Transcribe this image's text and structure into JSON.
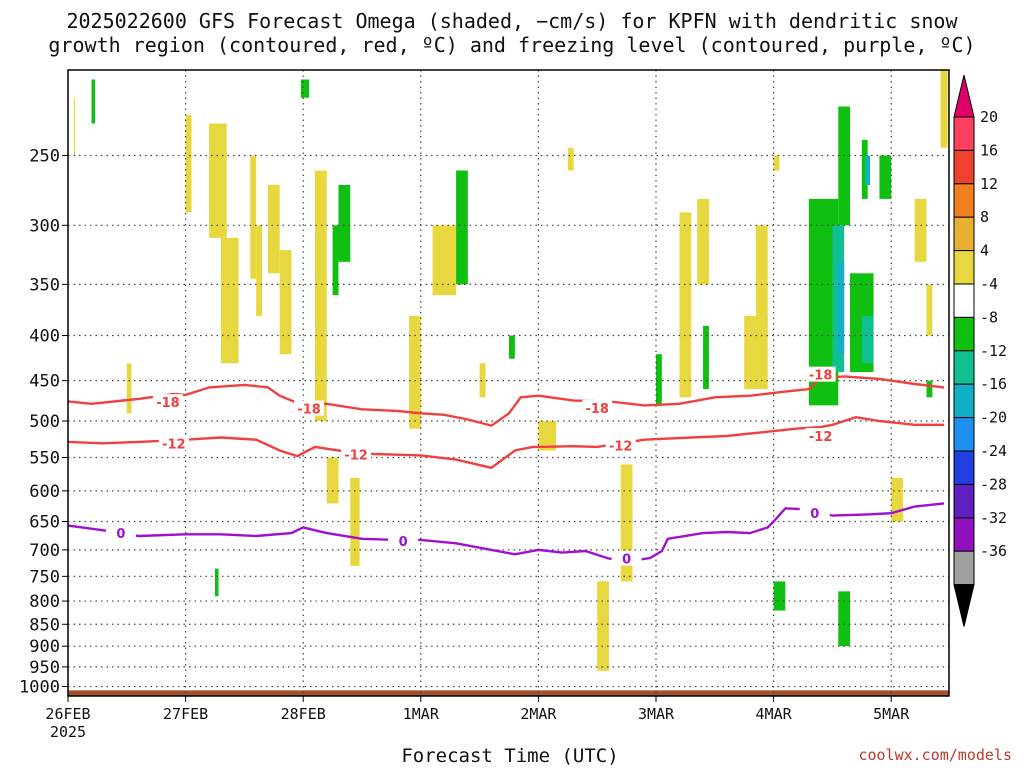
{
  "chart_data": {
    "type": "heatmap",
    "title_line1": "2025022600 GFS Forecast Omega (shaded, −cm/s) for KPFN with dendritic snow",
    "title_line2": "growth region (contoured, red, ºC) and freezing level (contoured, purple, ºC)",
    "xlabel": "Forecast Time (UTC)",
    "credit": "coolwx.com/models",
    "x_ticks": [
      "26FEB",
      "27FEB",
      "28FEB",
      "1MAR",
      "2MAR",
      "3MAR",
      "4MAR",
      "5MAR"
    ],
    "x_year": "2025",
    "x_range_days": [
      0,
      7.45
    ],
    "y_scale": "log-pressure",
    "y_ticks": [
      250,
      300,
      350,
      400,
      450,
      500,
      550,
      600,
      650,
      700,
      750,
      800,
      850,
      900,
      950,
      1000
    ],
    "y_range_hpa": [
      200,
      1025
    ],
    "grid": true,
    "colorbar": {
      "labels": [
        "20",
        "16",
        "12",
        "8",
        "4",
        "-4",
        "-8",
        "-12",
        "-16",
        "-20",
        "-24",
        "-28",
        "-32",
        "-36"
      ],
      "colors": [
        "#ff4060",
        "#f04030",
        "#f08020",
        "#e8b030",
        "#e8d840",
        "#ffffff",
        "#10c010",
        "#10c090",
        "#10b0c8",
        "#2090f0",
        "#2040e0",
        "#6020c0",
        "#9010c0",
        "#a0a0a0"
      ],
      "top_arrow_color": "#e0006a",
      "bottom_arrow_color": "#000000"
    },
    "contours": [
      {
        "label": "-18",
        "color": "#f04040",
        "points": [
          [
            0,
            475
          ],
          [
            0.2,
            478
          ],
          [
            0.6,
            472
          ],
          [
            0.9,
            466
          ],
          [
            1.0,
            467
          ],
          [
            1.2,
            458
          ],
          [
            1.5,
            455
          ],
          [
            1.7,
            458
          ],
          [
            1.8,
            468
          ],
          [
            2.0,
            480
          ],
          [
            2.2,
            478
          ],
          [
            2.5,
            485
          ],
          [
            2.8,
            487
          ],
          [
            3.0,
            490
          ],
          [
            3.2,
            492
          ],
          [
            3.4,
            498
          ],
          [
            3.6,
            506
          ],
          [
            3.75,
            490
          ],
          [
            3.85,
            470
          ],
          [
            4.0,
            468
          ],
          [
            4.3,
            474
          ],
          [
            4.6,
            475
          ],
          [
            4.9,
            480
          ],
          [
            5.2,
            478
          ],
          [
            5.5,
            470
          ],
          [
            5.8,
            468
          ],
          [
            6.1,
            463
          ],
          [
            6.3,
            460
          ],
          [
            6.4,
            447
          ],
          [
            6.6,
            445
          ],
          [
            6.9,
            448
          ],
          [
            7.2,
            454
          ],
          [
            7.45,
            458
          ]
        ],
        "label_at": [
          [
            0.85,
            476
          ],
          [
            2.05,
            484
          ],
          [
            4.5,
            483
          ],
          [
            6.4,
            443
          ]
        ]
      },
      {
        "label": "-12",
        "color": "#f04040",
        "points": [
          [
            0,
            528
          ],
          [
            0.3,
            530
          ],
          [
            0.6,
            528
          ],
          [
            1.0,
            525
          ],
          [
            1.3,
            522
          ],
          [
            1.6,
            525
          ],
          [
            1.8,
            540
          ],
          [
            1.95,
            548
          ],
          [
            2.1,
            535
          ],
          [
            2.3,
            540
          ],
          [
            2.6,
            545
          ],
          [
            3.0,
            547
          ],
          [
            3.3,
            553
          ],
          [
            3.6,
            565
          ],
          [
            3.8,
            540
          ],
          [
            3.95,
            535
          ],
          [
            4.0,
            535
          ],
          [
            4.3,
            534
          ],
          [
            4.5,
            535
          ],
          [
            4.7,
            530
          ],
          [
            4.9,
            525
          ],
          [
            5.3,
            522
          ],
          [
            5.6,
            520
          ],
          [
            5.9,
            515
          ],
          [
            6.2,
            510
          ],
          [
            6.4,
            508
          ],
          [
            6.5,
            505
          ],
          [
            6.7,
            495
          ],
          [
            6.9,
            500
          ],
          [
            7.2,
            505
          ],
          [
            7.45,
            505
          ]
        ],
        "label_at": [
          [
            0.9,
            530
          ],
          [
            2.45,
            546
          ],
          [
            4.7,
            533
          ],
          [
            6.4,
            520
          ]
        ]
      },
      {
        "label": "0",
        "color": "#a010d0",
        "points": [
          [
            0,
            657
          ],
          [
            0.3,
            665
          ],
          [
            0.6,
            675
          ],
          [
            1.0,
            672
          ],
          [
            1.3,
            672
          ],
          [
            1.6,
            675
          ],
          [
            1.9,
            670
          ],
          [
            2.0,
            660
          ],
          [
            2.2,
            670
          ],
          [
            2.5,
            680
          ],
          [
            2.8,
            682
          ],
          [
            3.0,
            682
          ],
          [
            3.3,
            688
          ],
          [
            3.6,
            700
          ],
          [
            3.8,
            708
          ],
          [
            4.0,
            700
          ],
          [
            4.2,
            705
          ],
          [
            4.4,
            702
          ],
          [
            4.6,
            716
          ],
          [
            4.8,
            720
          ],
          [
            4.95,
            715
          ],
          [
            5.05,
            702
          ],
          [
            5.1,
            680
          ],
          [
            5.4,
            670
          ],
          [
            5.6,
            668
          ],
          [
            5.8,
            670
          ],
          [
            5.95,
            660
          ],
          [
            6.0,
            650
          ],
          [
            6.1,
            628
          ],
          [
            6.3,
            630
          ],
          [
            6.5,
            640
          ],
          [
            6.8,
            638
          ],
          [
            7.0,
            636
          ],
          [
            7.2,
            625
          ],
          [
            7.45,
            620
          ]
        ],
        "label_at": [
          [
            0.45,
            670
          ],
          [
            2.85,
            684
          ],
          [
            4.75,
            716
          ],
          [
            6.35,
            636
          ]
        ]
      }
    ],
    "shaded_regions": [
      {
        "color": "#e8d840",
        "cells": [
          [
            0.05,
            215,
            0.06,
            250
          ],
          [
            0.5,
            430,
            0.54,
            490
          ],
          [
            1.0,
            225,
            1.05,
            290
          ],
          [
            1.2,
            230,
            1.35,
            310
          ],
          [
            1.3,
            310,
            1.45,
            430
          ],
          [
            1.55,
            250,
            1.6,
            345
          ],
          [
            1.6,
            300,
            1.65,
            380
          ],
          [
            1.7,
            270,
            1.8,
            340
          ],
          [
            1.8,
            320,
            1.9,
            420
          ],
          [
            2.1,
            260,
            2.2,
            500
          ],
          [
            2.2,
            550,
            2.3,
            620
          ],
          [
            2.4,
            580,
            2.48,
            730
          ],
          [
            2.9,
            380,
            3.0,
            510
          ],
          [
            3.1,
            300,
            3.3,
            360
          ],
          [
            3.5,
            430,
            3.55,
            470
          ],
          [
            4.0,
            500,
            4.15,
            540
          ],
          [
            4.25,
            245,
            4.3,
            260
          ],
          [
            4.5,
            760,
            4.6,
            960
          ],
          [
            4.7,
            560,
            4.8,
            760
          ],
          [
            5.2,
            290,
            5.3,
            470
          ],
          [
            5.35,
            280,
            5.45,
            350
          ],
          [
            5.75,
            380,
            5.95,
            460
          ],
          [
            5.85,
            300,
            5.95,
            390
          ],
          [
            6.0,
            250,
            6.05,
            260
          ],
          [
            7.0,
            580,
            7.1,
            650
          ],
          [
            7.2,
            280,
            7.3,
            330
          ],
          [
            7.3,
            350,
            7.35,
            400
          ],
          [
            7.42,
            200,
            7.48,
            245
          ]
        ]
      },
      {
        "color": "#10c010",
        "cells": [
          [
            0.2,
            205,
            0.23,
            230
          ],
          [
            1.25,
            735,
            1.28,
            790
          ],
          [
            1.98,
            205,
            2.05,
            215
          ],
          [
            2.25,
            300,
            2.3,
            360
          ],
          [
            2.3,
            270,
            2.4,
            330
          ],
          [
            3.3,
            260,
            3.4,
            350
          ],
          [
            3.75,
            400,
            3.8,
            425
          ],
          [
            5.0,
            420,
            5.05,
            480
          ],
          [
            5.4,
            390,
            5.45,
            460
          ],
          [
            6.0,
            760,
            6.1,
            820
          ],
          [
            6.3,
            280,
            6.55,
            480
          ],
          [
            6.55,
            220,
            6.65,
            300
          ],
          [
            6.65,
            340,
            6.85,
            440
          ],
          [
            6.75,
            240,
            6.8,
            280
          ],
          [
            6.9,
            250,
            7.0,
            280
          ],
          [
            7.3,
            450,
            7.35,
            470
          ],
          [
            6.55,
            780,
            6.65,
            900
          ]
        ]
      },
      {
        "color": "#10c090",
        "cells": [
          [
            6.5,
            300,
            6.6,
            440
          ],
          [
            6.75,
            380,
            6.85,
            430
          ]
        ]
      },
      {
        "color": "#10b0c8",
        "cells": [
          [
            6.55,
            330,
            6.6,
            420
          ],
          [
            6.78,
            250,
            6.82,
            270
          ]
        ]
      }
    ],
    "surface_band": {
      "color": "#a0522d",
      "from_hpa": 1010,
      "to_hpa": 1025
    }
  }
}
